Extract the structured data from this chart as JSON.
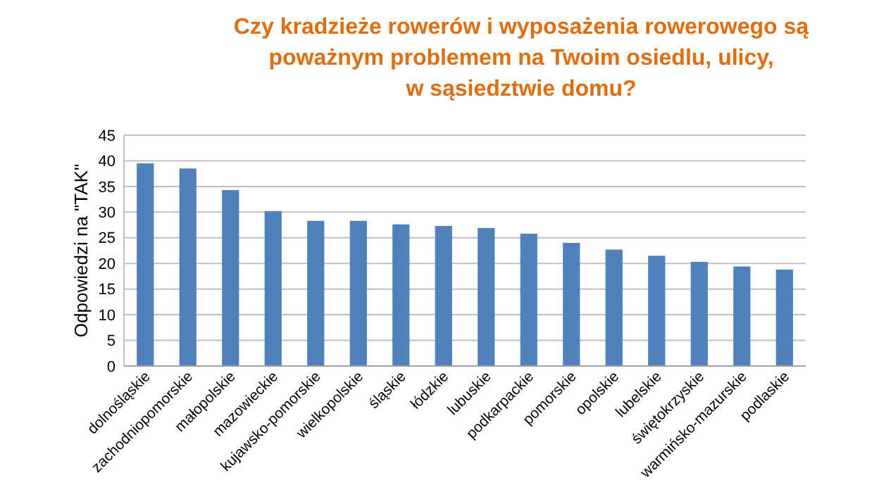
{
  "chart_data": {
    "type": "bar",
    "title": "Czy kradzieże rowerów i wyposażenia rowerowego są\npoważnym problemem na Twoim osiedlu, ulicy,\nw sąsiedztwie domu?",
    "ylabel": "Odpowiedzi na \"TAK\"",
    "categories": [
      "dolnośląskie",
      "zachodniopomorskie",
      "małopolskie",
      "mazowieckie",
      "kujawsko-pomorskie",
      "wielkopolskie",
      "śląskie",
      "łódzkie",
      "lubuskie",
      "podkarpackie",
      "pomorskie",
      "opolskie",
      "lubelskie",
      "świętokrzyskie",
      "warmińsko-mazurskie",
      "podlaskie"
    ],
    "values": [
      39.5,
      38.5,
      34.3,
      30.2,
      28.3,
      28.3,
      27.6,
      27.3,
      26.9,
      25.8,
      24.0,
      22.7,
      21.5,
      20.3,
      19.4,
      18.8
    ],
    "color": "#4f81bd",
    "ylim": [
      0,
      45
    ],
    "yticks": [
      0,
      5,
      10,
      15,
      20,
      25,
      30,
      35,
      40,
      45
    ],
    "grid": "y"
  }
}
